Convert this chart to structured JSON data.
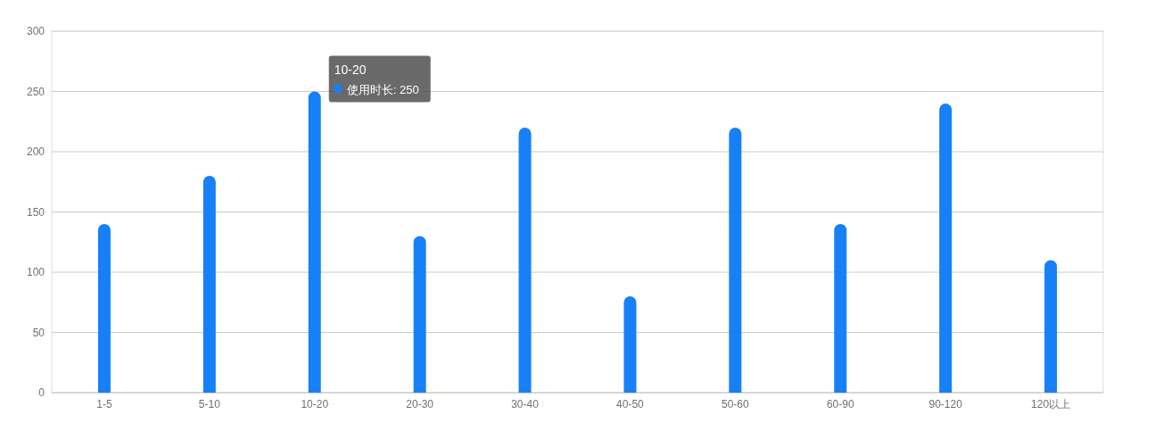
{
  "chart_data": {
    "type": "bar",
    "categories": [
      "1-5",
      "5-10",
      "10-20",
      "20-30",
      "30-40",
      "40-50",
      "50-60",
      "60-90",
      "90-120",
      "120以上"
    ],
    "series": [
      {
        "color": "#1780f7",
        "values": [
          140,
          180,
          250,
          130,
          220,
          80,
          220,
          140,
          240,
          110
        ]
      }
    ],
    "ylim": [
      0,
      300
    ],
    "yticks": [
      0,
      50,
      100,
      150,
      200,
      250,
      300
    ],
    "grid": "y",
    "annotations": [
      {
        "text": "使用时长: 250",
        "x": "10-20",
        "y": 250
      }
    ]
  }
}
